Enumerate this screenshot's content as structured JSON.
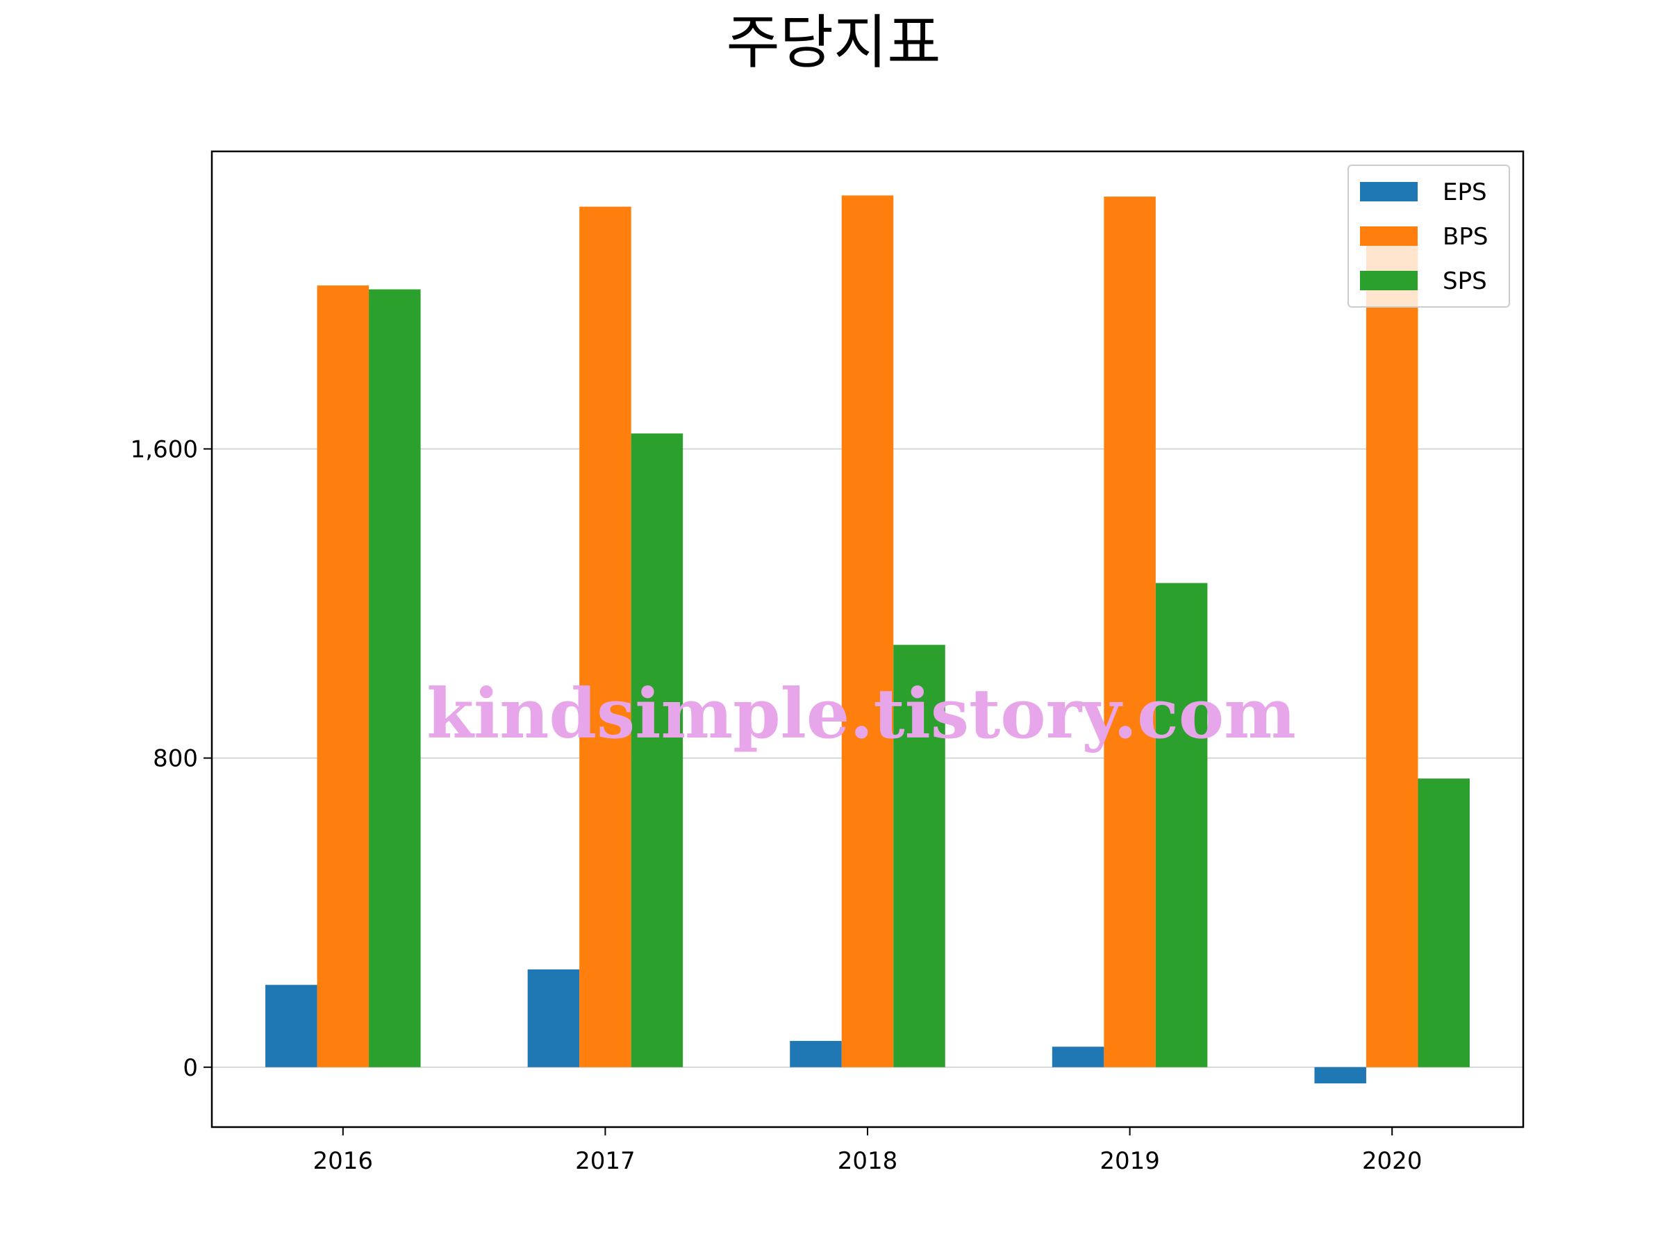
{
  "chart_data": {
    "type": "bar",
    "title": "주당지표",
    "xlabel": "",
    "ylabel": "",
    "categories": [
      "2016",
      "2017",
      "2018",
      "2019",
      "2020"
    ],
    "series": [
      {
        "name": "EPS",
        "color": "#1f77b4",
        "values": [
          213,
          253,
          68,
          53,
          -42
        ]
      },
      {
        "name": "BPS",
        "color": "#ff7f0e",
        "values": [
          2023,
          2227,
          2256,
          2253,
          2133
        ]
      },
      {
        "name": "SPS",
        "color": "#2ca02c",
        "values": [
          2013,
          1640,
          1093,
          1253,
          747
        ]
      }
    ],
    "ylim": [
      -155,
      2370
    ],
    "yticks": [
      0,
      800,
      1600
    ],
    "ytick_labels": [
      "0",
      "800",
      "1,600"
    ],
    "grid": "y",
    "legend": "top-right",
    "watermark": "kindsimple.tistory.com"
  }
}
